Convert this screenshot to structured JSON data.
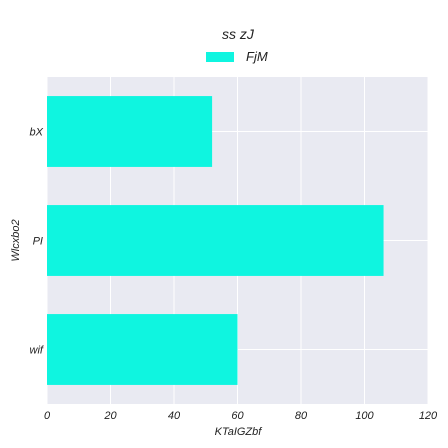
{
  "chart_data": {
    "type": "bar",
    "orientation": "horizontal",
    "title": "ss zJ",
    "xlabel": "KTaIGZbf",
    "ylabel": "Wlcxbo2",
    "categories": [
      "bX",
      "PI",
      "wif"
    ],
    "series": [
      {
        "name": "FjM",
        "values": [
          52,
          106,
          60
        ],
        "color": "#0ff5e0"
      }
    ],
    "xlim": [
      0,
      120
    ],
    "xticks": [
      0,
      20,
      40,
      60,
      80,
      100,
      120
    ],
    "grid": true,
    "legend": "top-center",
    "plot_background": "#e9eaf2"
  }
}
